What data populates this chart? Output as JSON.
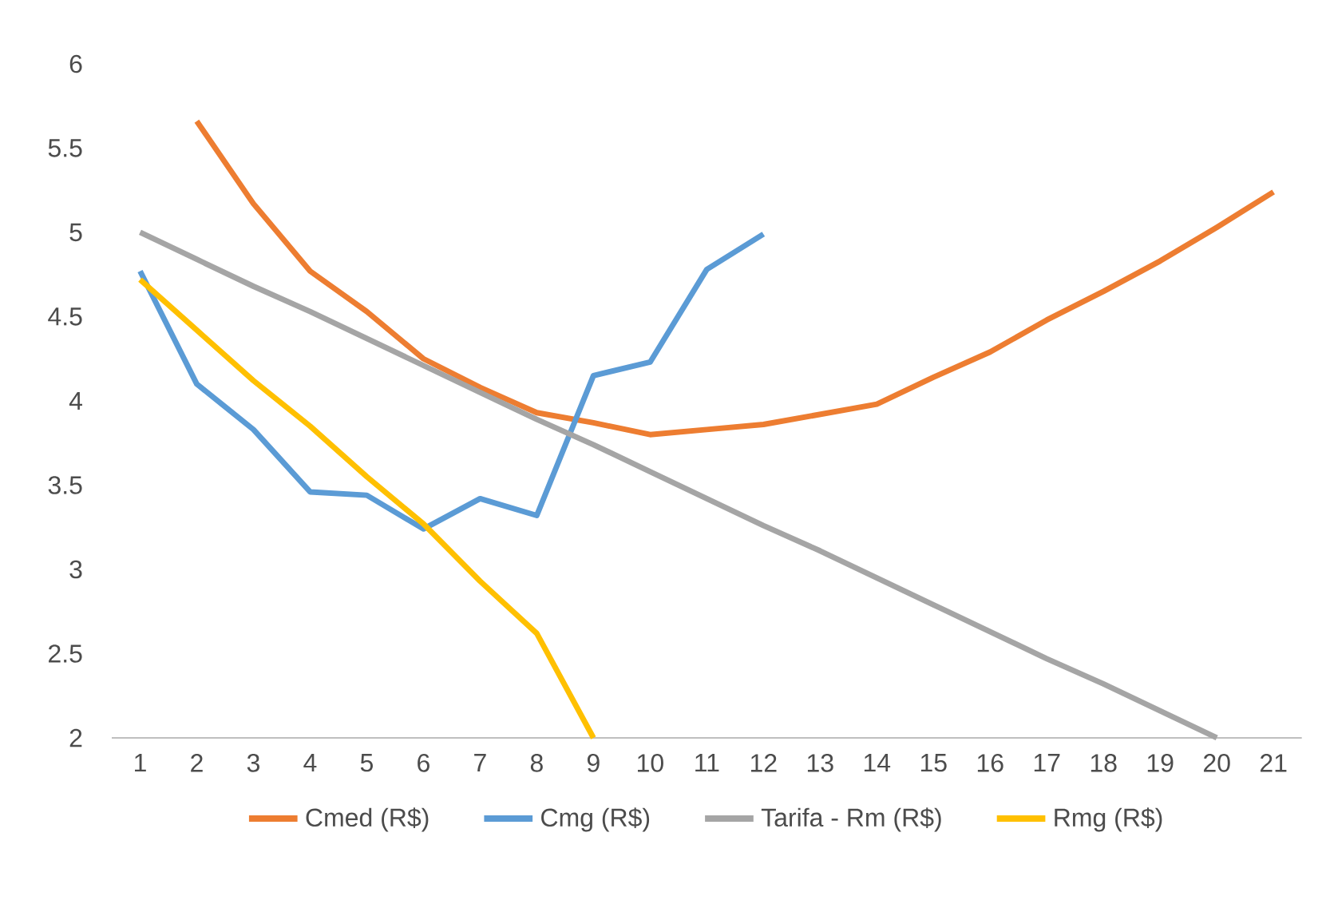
{
  "chart_data": {
    "type": "line",
    "categories": [
      "1",
      "2",
      "3",
      "4",
      "5",
      "6",
      "7",
      "8",
      "9",
      "10",
      "11",
      "12",
      "13",
      "14",
      "15",
      "16",
      "17",
      "18",
      "19",
      "20",
      "21"
    ],
    "series": [
      {
        "name": "Cmed (R$)",
        "color": "#ed7d31",
        "values": [
          null,
          5.66,
          5.17,
          4.77,
          4.53,
          4.25,
          4.08,
          3.93,
          3.87,
          3.8,
          3.83,
          3.86,
          3.92,
          3.98,
          4.14,
          4.29,
          4.48,
          4.65,
          4.83,
          5.03,
          5.24
        ]
      },
      {
        "name": "Cmg (R$)",
        "color": "#5b9bd5",
        "values": [
          4.77,
          4.1,
          3.83,
          3.46,
          3.44,
          3.24,
          3.42,
          3.32,
          4.15,
          4.23,
          4.78,
          4.99,
          null,
          null,
          null,
          null,
          null,
          null,
          null,
          null,
          null
        ]
      },
      {
        "name": "Tarifa - Rm (R$)",
        "color": "#a5a5a5",
        "values": [
          5.0,
          4.84,
          4.68,
          4.53,
          4.37,
          4.21,
          4.05,
          3.89,
          3.74,
          3.58,
          3.42,
          3.26,
          3.11,
          2.95,
          2.79,
          2.63,
          2.47,
          2.32,
          2.16,
          2.0,
          null
        ]
      },
      {
        "name": "Rmg (R$)",
        "color": "#ffc000",
        "values": [
          4.72,
          4.42,
          4.12,
          3.85,
          3.55,
          3.27,
          2.93,
          2.62,
          2.0,
          null,
          null,
          null,
          null,
          null,
          null,
          null,
          null,
          null,
          null,
          null,
          null
        ]
      }
    ],
    "ylim": [
      2,
      6
    ],
    "yticks": [
      2,
      2.5,
      3,
      3.5,
      4,
      4.5,
      5,
      5.5,
      6
    ],
    "legend": "bottom"
  }
}
